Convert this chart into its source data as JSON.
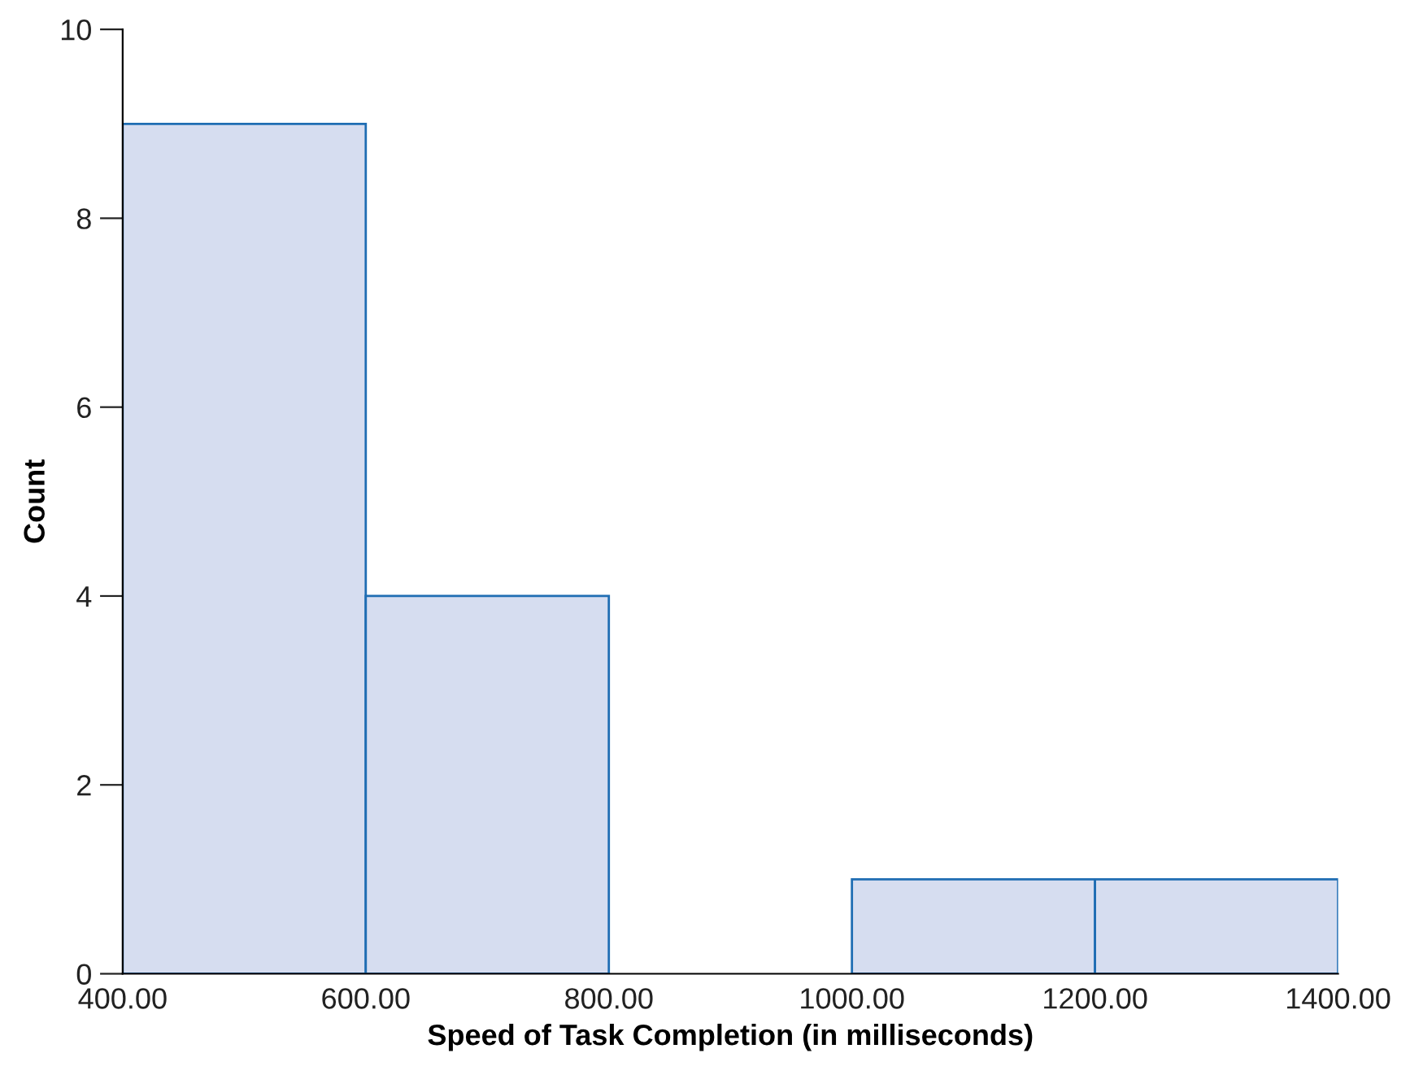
{
  "chart_data": {
    "type": "histogram",
    "xlabel": "Speed of Task Completion (in milliseconds)",
    "ylabel": "Count",
    "bins": [
      400,
      600,
      800,
      1000,
      1200,
      1400
    ],
    "values": [
      9,
      4,
      0,
      1,
      1
    ],
    "color": "#d6ddf0",
    "xlim": [
      400,
      1400
    ],
    "xticks": [
      {
        "value": 400,
        "label": "400.00"
      },
      {
        "value": 600,
        "label": "600.00"
      },
      {
        "value": 800,
        "label": "800.00"
      },
      {
        "value": 1000,
        "label": "1000.00"
      },
      {
        "value": 1200,
        "label": "1200.00"
      },
      {
        "value": 1400,
        "label": "1400.00"
      }
    ],
    "ylim": [
      0,
      10
    ],
    "yticks": [
      0,
      2,
      4,
      6,
      8,
      10
    ],
    "grid": false
  }
}
